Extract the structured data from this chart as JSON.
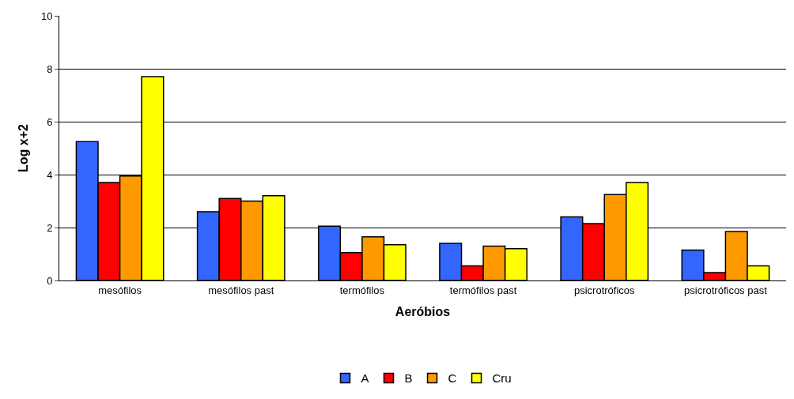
{
  "chart_data": {
    "type": "bar",
    "xlabel": "Aeróbios",
    "ylabel": "Log x+2",
    "categories": [
      "mesófilos",
      "mesófilos past",
      "termófilos",
      "termófilos past",
      "psicrotróficos",
      "psicrotróficos past"
    ],
    "series": [
      {
        "name": "A",
        "color": "#3366ff",
        "values": [
          5.25,
          2.6,
          2.05,
          1.4,
          2.4,
          1.15
        ]
      },
      {
        "name": "B",
        "color": "#ff0000",
        "values": [
          3.7,
          3.1,
          1.05,
          0.55,
          2.15,
          0.3
        ]
      },
      {
        "name": "C",
        "color": "#ff9900",
        "values": [
          3.95,
          3.0,
          1.65,
          1.3,
          3.25,
          1.85
        ]
      },
      {
        "name": "Cru",
        "color": "#ffff00",
        "values": [
          7.7,
          3.2,
          1.35,
          1.2,
          3.7,
          0.55
        ]
      }
    ],
    "ylim": [
      0,
      10
    ],
    "yticks": [
      0,
      2,
      4,
      6,
      8,
      10
    ],
    "grid": "y",
    "legend": "bottom"
  }
}
